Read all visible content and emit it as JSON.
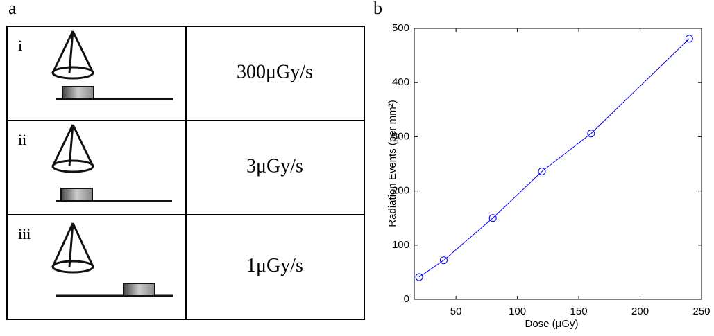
{
  "panel_a": {
    "label": "a",
    "rows": [
      {
        "label": "i",
        "rate": "300μGy/s"
      },
      {
        "label": "ii",
        "rate": "3μGy/s"
      },
      {
        "label": "iii",
        "rate": "1μGy/s"
      }
    ]
  },
  "chart_data": {
    "type": "line",
    "label": "b",
    "x_label": "Dose (μGy)",
    "y_label": "Radiation Events (per mm²)",
    "x": [
      20,
      40,
      80,
      120,
      160,
      240
    ],
    "series": [
      {
        "color": "#0000ff",
        "values": [
          41,
          72,
          150,
          236,
          306,
          481
        ]
      }
    ],
    "xlim": [
      16,
      250
    ],
    "xticks": [
      50,
      100,
      150,
      200,
      250
    ],
    "ylim": [
      0,
      500
    ],
    "yticks": [
      0,
      100,
      200,
      300,
      400,
      500
    ]
  }
}
